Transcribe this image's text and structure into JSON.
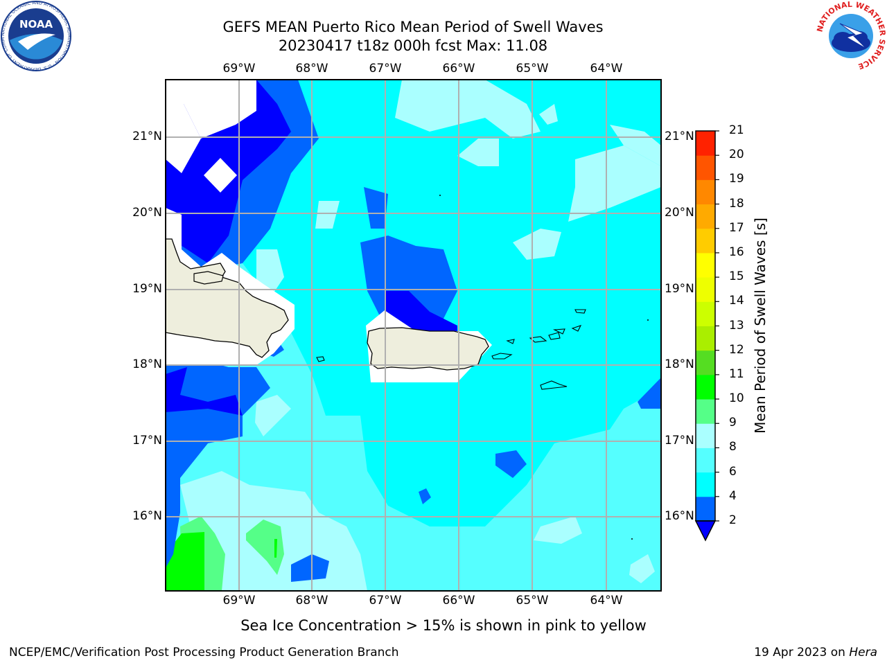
{
  "header": {
    "title_line1": "GEFS MEAN Puerto Rico Mean Period of Swell Waves",
    "title_line2": "20230417 t18z 000h fcst   Max: 11.08"
  },
  "logos": {
    "left": "noaa-logo",
    "left_text": "NOAA",
    "left_ring_text": "NATIONAL OCEANIC AND ATMOSPHERIC ADMINISTRATION · U.S. DEPARTMENT OF COMMERCE",
    "right": "nws-logo",
    "right_ring_text": "NATIONAL WEATHER SERVICE"
  },
  "map": {
    "lon_labels": [
      "69°W",
      "68°W",
      "67°W",
      "66°W",
      "65°W",
      "64°W"
    ],
    "lat_labels": [
      "21°N",
      "20°N",
      "19°N",
      "18°N",
      "17°N",
      "16°N"
    ],
    "land_color": "#eeeedd",
    "grid_color": "#b0b0b0",
    "no_data_color": "#ffffff"
  },
  "colorbar": {
    "label": "Mean Period of Swell Waves [s]",
    "ticks": [
      "2",
      "4",
      "6",
      "8",
      "9",
      "10",
      "11",
      "12",
      "13",
      "14",
      "15",
      "16",
      "17",
      "18",
      "19",
      "20",
      "21"
    ],
    "colors": [
      "#0066ff",
      "#00ffff",
      "#55ffff",
      "#aaffff",
      "#55ff88",
      "#00ff00",
      "#55dd22",
      "#aaee00",
      "#ccff00",
      "#eeff00",
      "#ffff00",
      "#ffcc00",
      "#ffaa00",
      "#ff8800",
      "#ff5500",
      "#ff2200"
    ],
    "under_color": "#0000ff",
    "over_color": "#ff0000"
  },
  "footer": {
    "caption": "Sea Ice Concentration > 15% is shown in pink to yellow",
    "credit": "NCEP/EMC/Verification Post Processing Product Generation Branch",
    "date_prefix": "19 Apr 2023 on ",
    "machine": "Hera"
  }
}
